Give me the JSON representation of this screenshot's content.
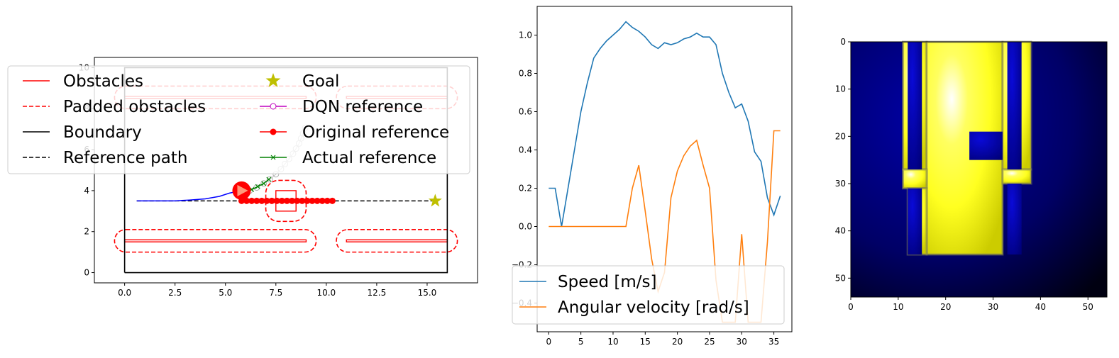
{
  "chart_data": [
    {
      "type": "line",
      "panel": "map",
      "xlim": [
        -1.5,
        17.5
      ],
      "ylim": [
        -0.5,
        10.5
      ],
      "xticks": [
        0.0,
        2.5,
        5.0,
        7.5,
        10.0,
        12.5,
        15.0
      ],
      "xtick_labels": [
        "0.0",
        "2.5",
        "5.0",
        "7.5",
        "10.0",
        "12.5",
        "15.0"
      ],
      "yticks": [
        0,
        2,
        4,
        6,
        8,
        10
      ],
      "ytick_labels": [
        "0",
        "2",
        "4",
        "6",
        "8",
        "10"
      ],
      "legend_location": "upper-left",
      "legend": [
        {
          "label": "Obstacles",
          "color": "#ff0000",
          "style": "solid"
        },
        {
          "label": "Goal",
          "color": "#bfbf00",
          "style": "star"
        },
        {
          "label": "Padded obstacles",
          "color": "#ff0000",
          "style": "dashed"
        },
        {
          "label": "DQN reference",
          "color": "#bf00bf",
          "style": "circle-open"
        },
        {
          "label": "Boundary",
          "color": "#000000",
          "style": "solid"
        },
        {
          "label": "Original reference",
          "color": "#ff0000",
          "style": "dot-line"
        },
        {
          "label": "Reference path",
          "color": "#000000",
          "style": "dashed"
        },
        {
          "label": "Actual reference",
          "color": "#008000",
          "style": "x-line"
        }
      ],
      "boundary": [
        [
          0,
          0
        ],
        [
          16,
          0
        ],
        [
          16,
          10
        ],
        [
          0,
          10
        ],
        [
          0,
          0
        ]
      ],
      "obstacles": [
        {
          "x": [
            0,
            9
          ],
          "y": [
            1.5,
            1.6
          ]
        },
        {
          "x": [
            11,
            16
          ],
          "y": [
            1.5,
            1.6
          ]
        },
        {
          "x": [
            0,
            9
          ],
          "y": [
            8.5,
            8.6
          ]
        },
        {
          "x": [
            11,
            16
          ],
          "y": [
            8.5,
            8.6
          ]
        },
        {
          "x": [
            7.5,
            8.5
          ],
          "y": [
            3,
            4
          ]
        }
      ],
      "padded_obstacles": [
        {
          "x": [
            -0.5,
            9.5
          ],
          "y": [
            1.0,
            2.1
          ]
        },
        {
          "x": [
            10.5,
            16.5
          ],
          "y": [
            1.0,
            2.1
          ]
        },
        {
          "x": [
            -0.5,
            9.5
          ],
          "y": [
            8.0,
            9.1
          ]
        },
        {
          "x": [
            10.5,
            16.5
          ],
          "y": [
            8.0,
            9.1
          ]
        },
        {
          "x": [
            7.0,
            9.0
          ],
          "y": [
            2.5,
            4.5
          ]
        }
      ],
      "reference_path": {
        "x": [
          0.6,
          15.4
        ],
        "y": [
          3.5,
          3.5
        ]
      },
      "goal": {
        "x": 15.4,
        "y": 3.5
      },
      "robot": {
        "x": 5.8,
        "y": 4.0
      },
      "trajectory": {
        "x": [
          0.6,
          1.5,
          2.5,
          3.2,
          4.0,
          4.7,
          5.2,
          5.8
        ],
        "y": [
          3.5,
          3.5,
          3.5,
          3.54,
          3.6,
          3.72,
          3.88,
          4.0
        ]
      },
      "original_reference": {
        "x": [
          5.8,
          6.05,
          6.3,
          6.55,
          6.8,
          7.05,
          7.3,
          7.55,
          7.8,
          8.05,
          8.3,
          8.55,
          8.8,
          9.05,
          9.3,
          9.55,
          9.8,
          10.05,
          10.3
        ],
        "y": [
          3.5,
          3.5,
          3.5,
          3.5,
          3.5,
          3.5,
          3.5,
          3.5,
          3.5,
          3.5,
          3.5,
          3.5,
          3.5,
          3.5,
          3.5,
          3.5,
          3.5,
          3.5,
          3.5
        ]
      },
      "dqn_reference": {
        "x": [
          6.2,
          6.55,
          6.9,
          7.2,
          7.5,
          7.75,
          7.95,
          8.15,
          8.35,
          8.5,
          8.65,
          8.75,
          8.85,
          8.95
        ],
        "y": [
          4.0,
          4.15,
          4.35,
          4.55,
          4.8,
          5.05,
          5.3,
          5.55,
          5.8,
          6.05,
          6.3,
          6.55,
          6.8,
          7.05
        ]
      },
      "actual_reference": {
        "x": [
          6.0,
          6.3,
          6.6,
          6.9,
          7.15
        ],
        "y": [
          3.95,
          4.05,
          4.2,
          4.35,
          4.55
        ]
      }
    },
    {
      "type": "line",
      "panel": "speeds",
      "xlim": [
        -1.8,
        37.8
      ],
      "ylim": [
        -0.55,
        1.15
      ],
      "xticks": [
        0,
        5,
        10,
        15,
        20,
        25,
        30,
        35
      ],
      "xtick_labels": [
        "0",
        "5",
        "10",
        "15",
        "20",
        "25",
        "30",
        "35"
      ],
      "yticks": [
        -0.4,
        -0.2,
        0.0,
        0.2,
        0.4,
        0.6,
        0.8,
        1.0
      ],
      "ytick_labels": [
        "−0.4",
        "−0.2",
        "0.0",
        "0.2",
        "0.4",
        "0.6",
        "0.8",
        "1.0"
      ],
      "legend_location": "lower-left",
      "series": [
        {
          "name": "Speed [m/s]",
          "color": "#1f77b4",
          "x": [
            0,
            1,
            2,
            3,
            4,
            5,
            6,
            7,
            8,
            9,
            10,
            11,
            12,
            13,
            14,
            15,
            16,
            17,
            18,
            19,
            20,
            21,
            22,
            23,
            24,
            25,
            26,
            27,
            28,
            29,
            30,
            31,
            32,
            33,
            34,
            35,
            36
          ],
          "values": [
            0.2,
            0.2,
            0.0,
            0.2,
            0.4,
            0.6,
            0.75,
            0.88,
            0.93,
            0.97,
            1.0,
            1.03,
            1.07,
            1.04,
            1.02,
            0.99,
            0.95,
            0.93,
            0.96,
            0.95,
            0.96,
            0.98,
            0.99,
            1.01,
            0.99,
            0.99,
            0.95,
            0.8,
            0.7,
            0.62,
            0.64,
            0.55,
            0.39,
            0.34,
            0.15,
            0.06,
            0.16
          ]
        },
        {
          "name": "Angular velocity [rad/s]",
          "color": "#ff7f0e",
          "x": [
            0,
            1,
            2,
            3,
            4,
            5,
            6,
            7,
            8,
            9,
            10,
            11,
            12,
            13,
            14,
            15,
            16,
            17,
            18,
            19,
            20,
            21,
            22,
            23,
            24,
            25,
            26,
            27,
            28,
            29,
            30,
            31,
            32,
            33,
            34,
            35,
            36
          ],
          "values": [
            0,
            0,
            0,
            0,
            0,
            0,
            0,
            0,
            0,
            0,
            0,
            0,
            0,
            0.2,
            0.32,
            0.08,
            -0.17,
            -0.34,
            -0.24,
            0.15,
            0.29,
            0.37,
            0.42,
            0.45,
            0.32,
            0.2,
            -0.28,
            -0.5,
            -0.5,
            -0.5,
            -0.04,
            -0.5,
            -0.5,
            -0.5,
            -0.08,
            0.5,
            0.5
          ]
        }
      ]
    },
    {
      "type": "heatmap",
      "panel": "image",
      "xlim": [
        0,
        54
      ],
      "ylim": [
        54,
        0
      ],
      "xticks": [
        0,
        10,
        20,
        30,
        40,
        50
      ],
      "xtick_labels": [
        "0",
        "10",
        "20",
        "30",
        "40",
        "50"
      ],
      "yticks": [
        0,
        10,
        20,
        30,
        40,
        50
      ],
      "ytick_labels": [
        "0",
        "10",
        "20",
        "30",
        "40",
        "50"
      ],
      "colors": {
        "background": "#000033",
        "free": "#ffff33",
        "occupied": "#0000aa",
        "edge": "#7f7f55"
      },
      "regions": [
        {
          "kind": "free",
          "x": [
            11,
            16
          ],
          "y": [
            0,
            27
          ]
        },
        {
          "kind": "free",
          "x": [
            16,
            32
          ],
          "y": [
            0,
            45
          ]
        },
        {
          "kind": "free",
          "x": [
            32,
            38
          ],
          "y": [
            0,
            27
          ]
        },
        {
          "kind": "free",
          "x": [
            11,
            16
          ],
          "y": [
            27,
            31
          ]
        },
        {
          "kind": "free",
          "x": [
            12,
            16
          ],
          "y": [
            31,
            45
          ]
        },
        {
          "kind": "free",
          "x": [
            32,
            38
          ],
          "y": [
            27,
            30
          ]
        },
        {
          "kind": "occupied",
          "x": [
            12,
            15
          ],
          "y": [
            0,
            27
          ]
        },
        {
          "kind": "occupied",
          "x": [
            33,
            36
          ],
          "y": [
            0,
            27
          ]
        },
        {
          "kind": "occupied",
          "x": [
            12,
            15
          ],
          "y": [
            31,
            45
          ]
        },
        {
          "kind": "occupied",
          "x": [
            33,
            36
          ],
          "y": [
            30,
            45
          ]
        },
        {
          "kind": "occupied",
          "x": [
            25,
            32
          ],
          "y": [
            19,
            25
          ]
        }
      ]
    }
  ]
}
